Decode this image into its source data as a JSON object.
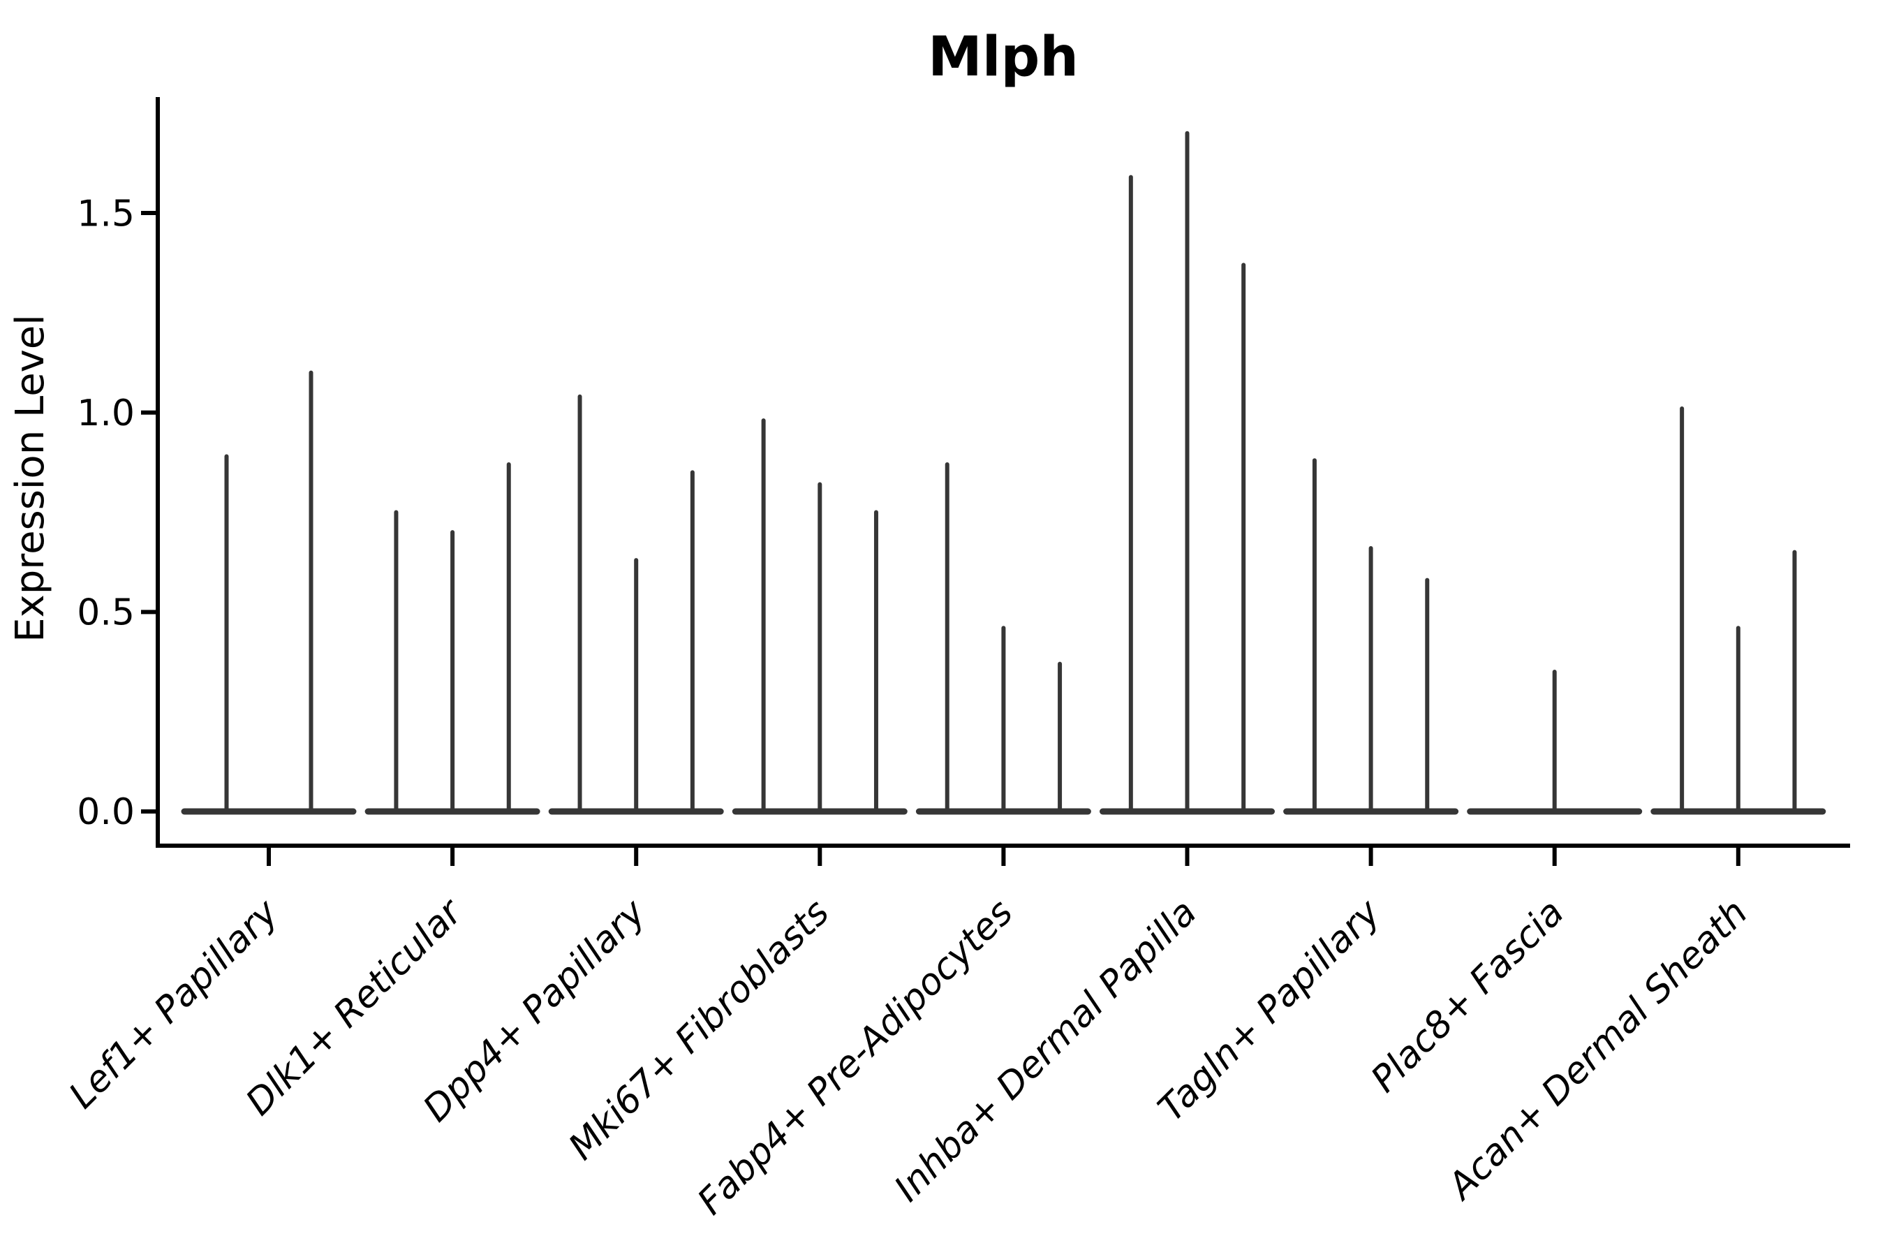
{
  "chart_data": {
    "type": "violin",
    "title": "Mlph",
    "ylabel": "Expression Level",
    "yticks": [
      {
        "label": "0.0",
        "value": 0.0
      },
      {
        "label": "0.5",
        "value": 0.5
      },
      {
        "label": "1.0",
        "value": 1.0
      },
      {
        "label": "1.5",
        "value": 1.5
      }
    ],
    "ylim": [
      -0.09,
      1.79
    ],
    "grid": false,
    "legend": null,
    "categories": [
      "Lef1+ Papillary",
      "Dlk1+ Reticular",
      "Dpp4+ Papillary",
      "Mki67+ Fibroblasts",
      "Fabp4+ Pre-Adipocytes",
      "Inhba+ Dermal Papilla",
      "Tagln+ Papillary",
      "Plac8+ Fascia",
      "Acan+ Dermal Sheath"
    ],
    "groups": [
      {
        "label": "Lef1+ Papillary",
        "spike_heights": [
          0.89,
          1.1
        ]
      },
      {
        "label": "Dlk1+ Reticular",
        "spike_heights": [
          0.75,
          0.7,
          0.87
        ]
      },
      {
        "label": "Dpp4+ Papillary",
        "spike_heights": [
          1.04,
          0.63,
          0.85
        ]
      },
      {
        "label": "Mki67+ Fibroblasts",
        "spike_heights": [
          0.98,
          0.82,
          0.75
        ]
      },
      {
        "label": "Fabp4+ Pre-Adipocytes",
        "spike_heights": [
          0.87,
          0.46,
          0.37
        ]
      },
      {
        "label": "Inhba+ Dermal Papilla",
        "spike_heights": [
          1.59,
          1.7,
          1.37
        ]
      },
      {
        "label": "Tagln+ Papillary",
        "spike_heights": [
          0.88,
          0.66,
          0.58
        ]
      },
      {
        "label": "Plac8+ Fascia",
        "spike_heights": [
          null,
          0.35,
          null
        ]
      },
      {
        "label": "Acan+ Dermal Sheath",
        "spike_heights": [
          1.01,
          0.46,
          0.65
        ]
      }
    ],
    "colors": {
      "violin_ink": "#363636",
      "axis": "#000000",
      "text": "#000000"
    }
  }
}
